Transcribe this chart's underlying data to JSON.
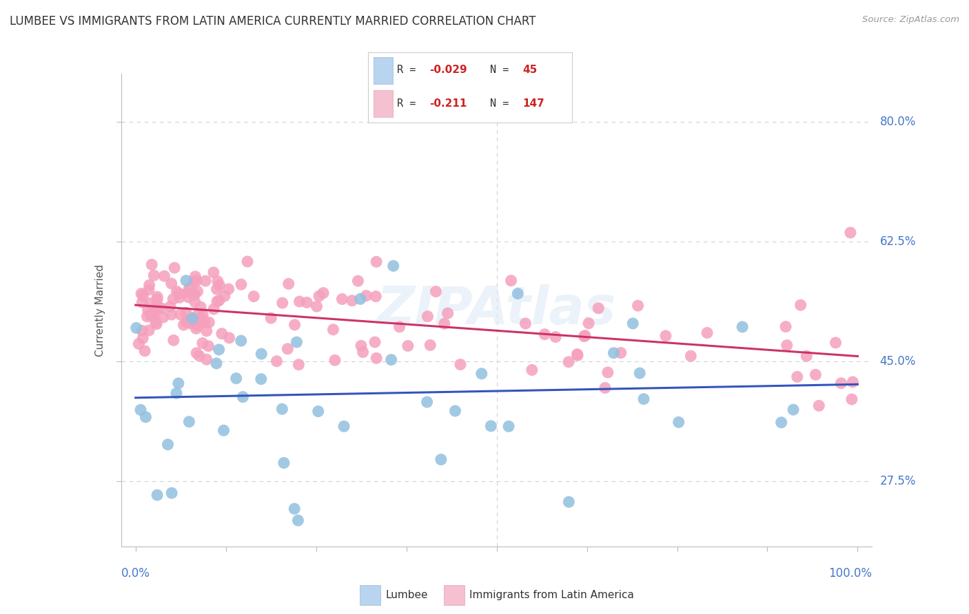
{
  "title": "LUMBEE VS IMMIGRANTS FROM LATIN AMERICA CURRENTLY MARRIED CORRELATION CHART",
  "source": "Source: ZipAtlas.com",
  "ylabel": "Currently Married",
  "ytick_values": [
    0.275,
    0.45,
    0.625,
    0.8
  ],
  "ytick_labels": [
    "27.5%",
    "45.0%",
    "62.5%",
    "80.0%"
  ],
  "xlim": [
    -2,
    102
  ],
  "ylim": [
    0.18,
    0.87
  ],
  "lumbee_color": "#92c0e0",
  "immigrant_color": "#f5a0bc",
  "trend_blue_color": "#3355bb",
  "trend_pink_color": "#cc3366",
  "R_lumbee": -0.029,
  "N_lumbee": 45,
  "R_immigrant": -0.211,
  "N_immigrant": 147,
  "watermark_text": "ZIPAtlas",
  "grid_color": "#d0d0d0",
  "axis_color": "#aaaaaa",
  "label_color": "#4477cc",
  "title_color": "#333333",
  "source_color": "#999999",
  "legend_R_color": "#cc2222",
  "legend_N_color": "#cc2222"
}
